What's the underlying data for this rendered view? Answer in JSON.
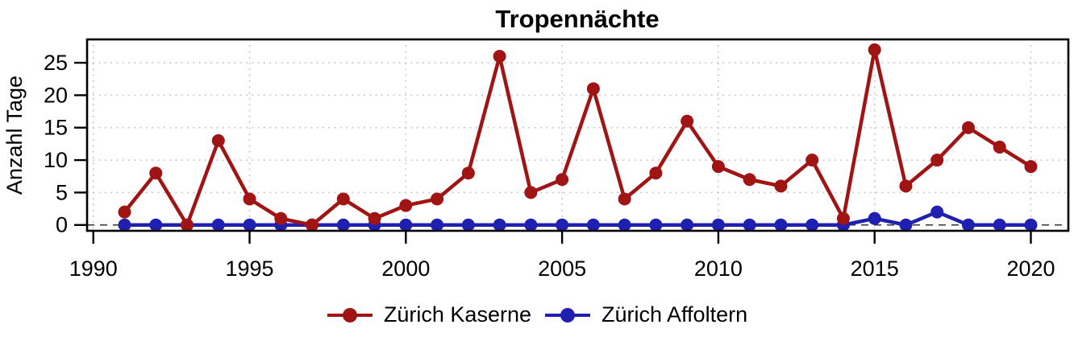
{
  "chart_data": {
    "type": "line",
    "title": "Tropennächte",
    "xlabel": "",
    "ylabel": "Anzahl Tage",
    "x": [
      1991,
      1992,
      1993,
      1994,
      1995,
      1996,
      1997,
      1998,
      1999,
      2000,
      2001,
      2002,
      2003,
      2004,
      2005,
      2006,
      2007,
      2008,
      2009,
      2010,
      2011,
      2012,
      2013,
      2014,
      2015,
      2016,
      2017,
      2018,
      2019,
      2020
    ],
    "series": [
      {
        "name": "Zürich Kaserne",
        "color": "#A01414",
        "values": [
          2,
          8,
          0,
          13,
          4,
          1,
          0,
          4,
          1,
          3,
          4,
          8,
          26,
          5,
          7,
          21,
          4,
          8,
          16,
          9,
          7,
          6,
          10,
          1,
          27,
          6,
          10,
          15,
          12,
          9
        ]
      },
      {
        "name": "Zürich Affoltern",
        "color": "#2020B0",
        "values": [
          0,
          0,
          0,
          0,
          0,
          0,
          0,
          0,
          0,
          0,
          0,
          0,
          0,
          0,
          0,
          0,
          0,
          0,
          0,
          0,
          0,
          0,
          0,
          0,
          1,
          0,
          2,
          0,
          0,
          0
        ]
      }
    ],
    "x_ticks": [
      1990,
      1995,
      2000,
      2005,
      2010,
      2015,
      2020
    ],
    "y_ticks": [
      0,
      5,
      10,
      15,
      20,
      25
    ],
    "xlim": [
      1989.8,
      2021.2
    ],
    "ylim": [
      -0.9,
      28.6
    ],
    "grid": "dotted",
    "zero_line": "dashed at y=0",
    "legend_position": "bottom"
  },
  "legend": {
    "items": [
      {
        "label": "Zürich Kaserne",
        "color": "#A01414"
      },
      {
        "label": "Zürich Affoltern",
        "color": "#2020B0"
      }
    ]
  }
}
